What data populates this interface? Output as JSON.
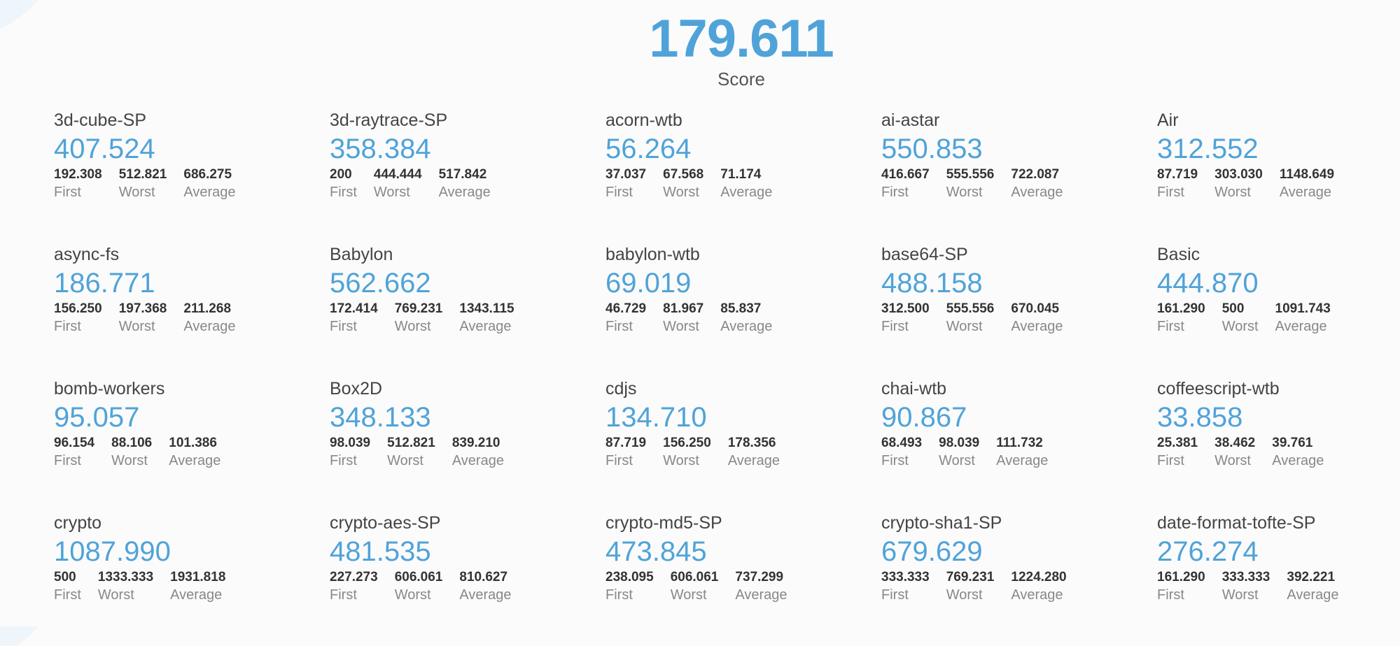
{
  "colors": {
    "accent": "#4fa3d9"
  },
  "score": {
    "value": "179.611",
    "label": "Score"
  },
  "stat_labels": {
    "first": "First",
    "worst": "Worst",
    "average": "Average"
  },
  "benchmarks": [
    {
      "name": "3d-cube-SP",
      "score": "407.524",
      "first": "192.308",
      "worst": "512.821",
      "average": "686.275"
    },
    {
      "name": "3d-raytrace-SP",
      "score": "358.384",
      "first": "200",
      "worst": "444.444",
      "average": "517.842"
    },
    {
      "name": "acorn-wtb",
      "score": "56.264",
      "first": "37.037",
      "worst": "67.568",
      "average": "71.174"
    },
    {
      "name": "ai-astar",
      "score": "550.853",
      "first": "416.667",
      "worst": "555.556",
      "average": "722.087"
    },
    {
      "name": "Air",
      "score": "312.552",
      "first": "87.719",
      "worst": "303.030",
      "average": "1148.649"
    },
    {
      "name": "async-fs",
      "score": "186.771",
      "first": "156.250",
      "worst": "197.368",
      "average": "211.268"
    },
    {
      "name": "Babylon",
      "score": "562.662",
      "first": "172.414",
      "worst": "769.231",
      "average": "1343.115"
    },
    {
      "name": "babylon-wtb",
      "score": "69.019",
      "first": "46.729",
      "worst": "81.967",
      "average": "85.837"
    },
    {
      "name": "base64-SP",
      "score": "488.158",
      "first": "312.500",
      "worst": "555.556",
      "average": "670.045"
    },
    {
      "name": "Basic",
      "score": "444.870",
      "first": "161.290",
      "worst": "500",
      "average": "1091.743"
    },
    {
      "name": "bomb-workers",
      "score": "95.057",
      "first": "96.154",
      "worst": "88.106",
      "average": "101.386"
    },
    {
      "name": "Box2D",
      "score": "348.133",
      "first": "98.039",
      "worst": "512.821",
      "average": "839.210"
    },
    {
      "name": "cdjs",
      "score": "134.710",
      "first": "87.719",
      "worst": "156.250",
      "average": "178.356"
    },
    {
      "name": "chai-wtb",
      "score": "90.867",
      "first": "68.493",
      "worst": "98.039",
      "average": "111.732"
    },
    {
      "name": "coffeescript-wtb",
      "score": "33.858",
      "first": "25.381",
      "worst": "38.462",
      "average": "39.761"
    },
    {
      "name": "crypto",
      "score": "1087.990",
      "first": "500",
      "worst": "1333.333",
      "average": "1931.818"
    },
    {
      "name": "crypto-aes-SP",
      "score": "481.535",
      "first": "227.273",
      "worst": "606.061",
      "average": "810.627"
    },
    {
      "name": "crypto-md5-SP",
      "score": "473.845",
      "first": "238.095",
      "worst": "606.061",
      "average": "737.299"
    },
    {
      "name": "crypto-sha1-SP",
      "score": "679.629",
      "first": "333.333",
      "worst": "769.231",
      "average": "1224.280"
    },
    {
      "name": "date-format-tofte-SP",
      "score": "276.274",
      "first": "161.290",
      "worst": "333.333",
      "average": "392.221"
    }
  ]
}
